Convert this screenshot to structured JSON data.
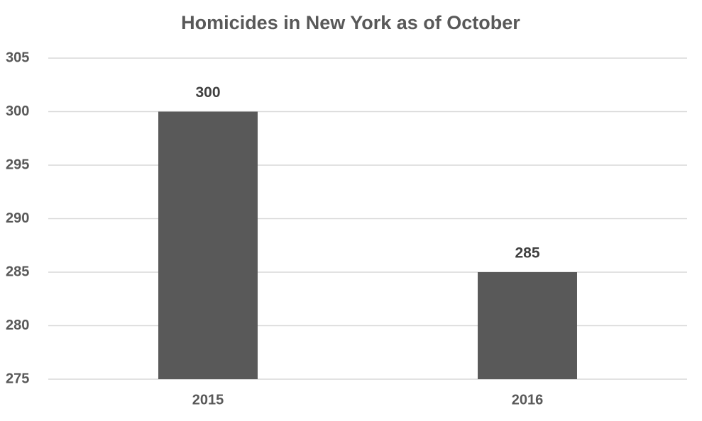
{
  "chart_data": {
    "type": "bar",
    "title": "Homicides in New York as of October",
    "categories": [
      "2015",
      "2016"
    ],
    "values": [
      300,
      285
    ],
    "color": "#595959",
    "ylim": [
      275,
      305
    ],
    "yticks": [
      275,
      280,
      285,
      290,
      295,
      300,
      305
    ],
    "grid": true
  }
}
